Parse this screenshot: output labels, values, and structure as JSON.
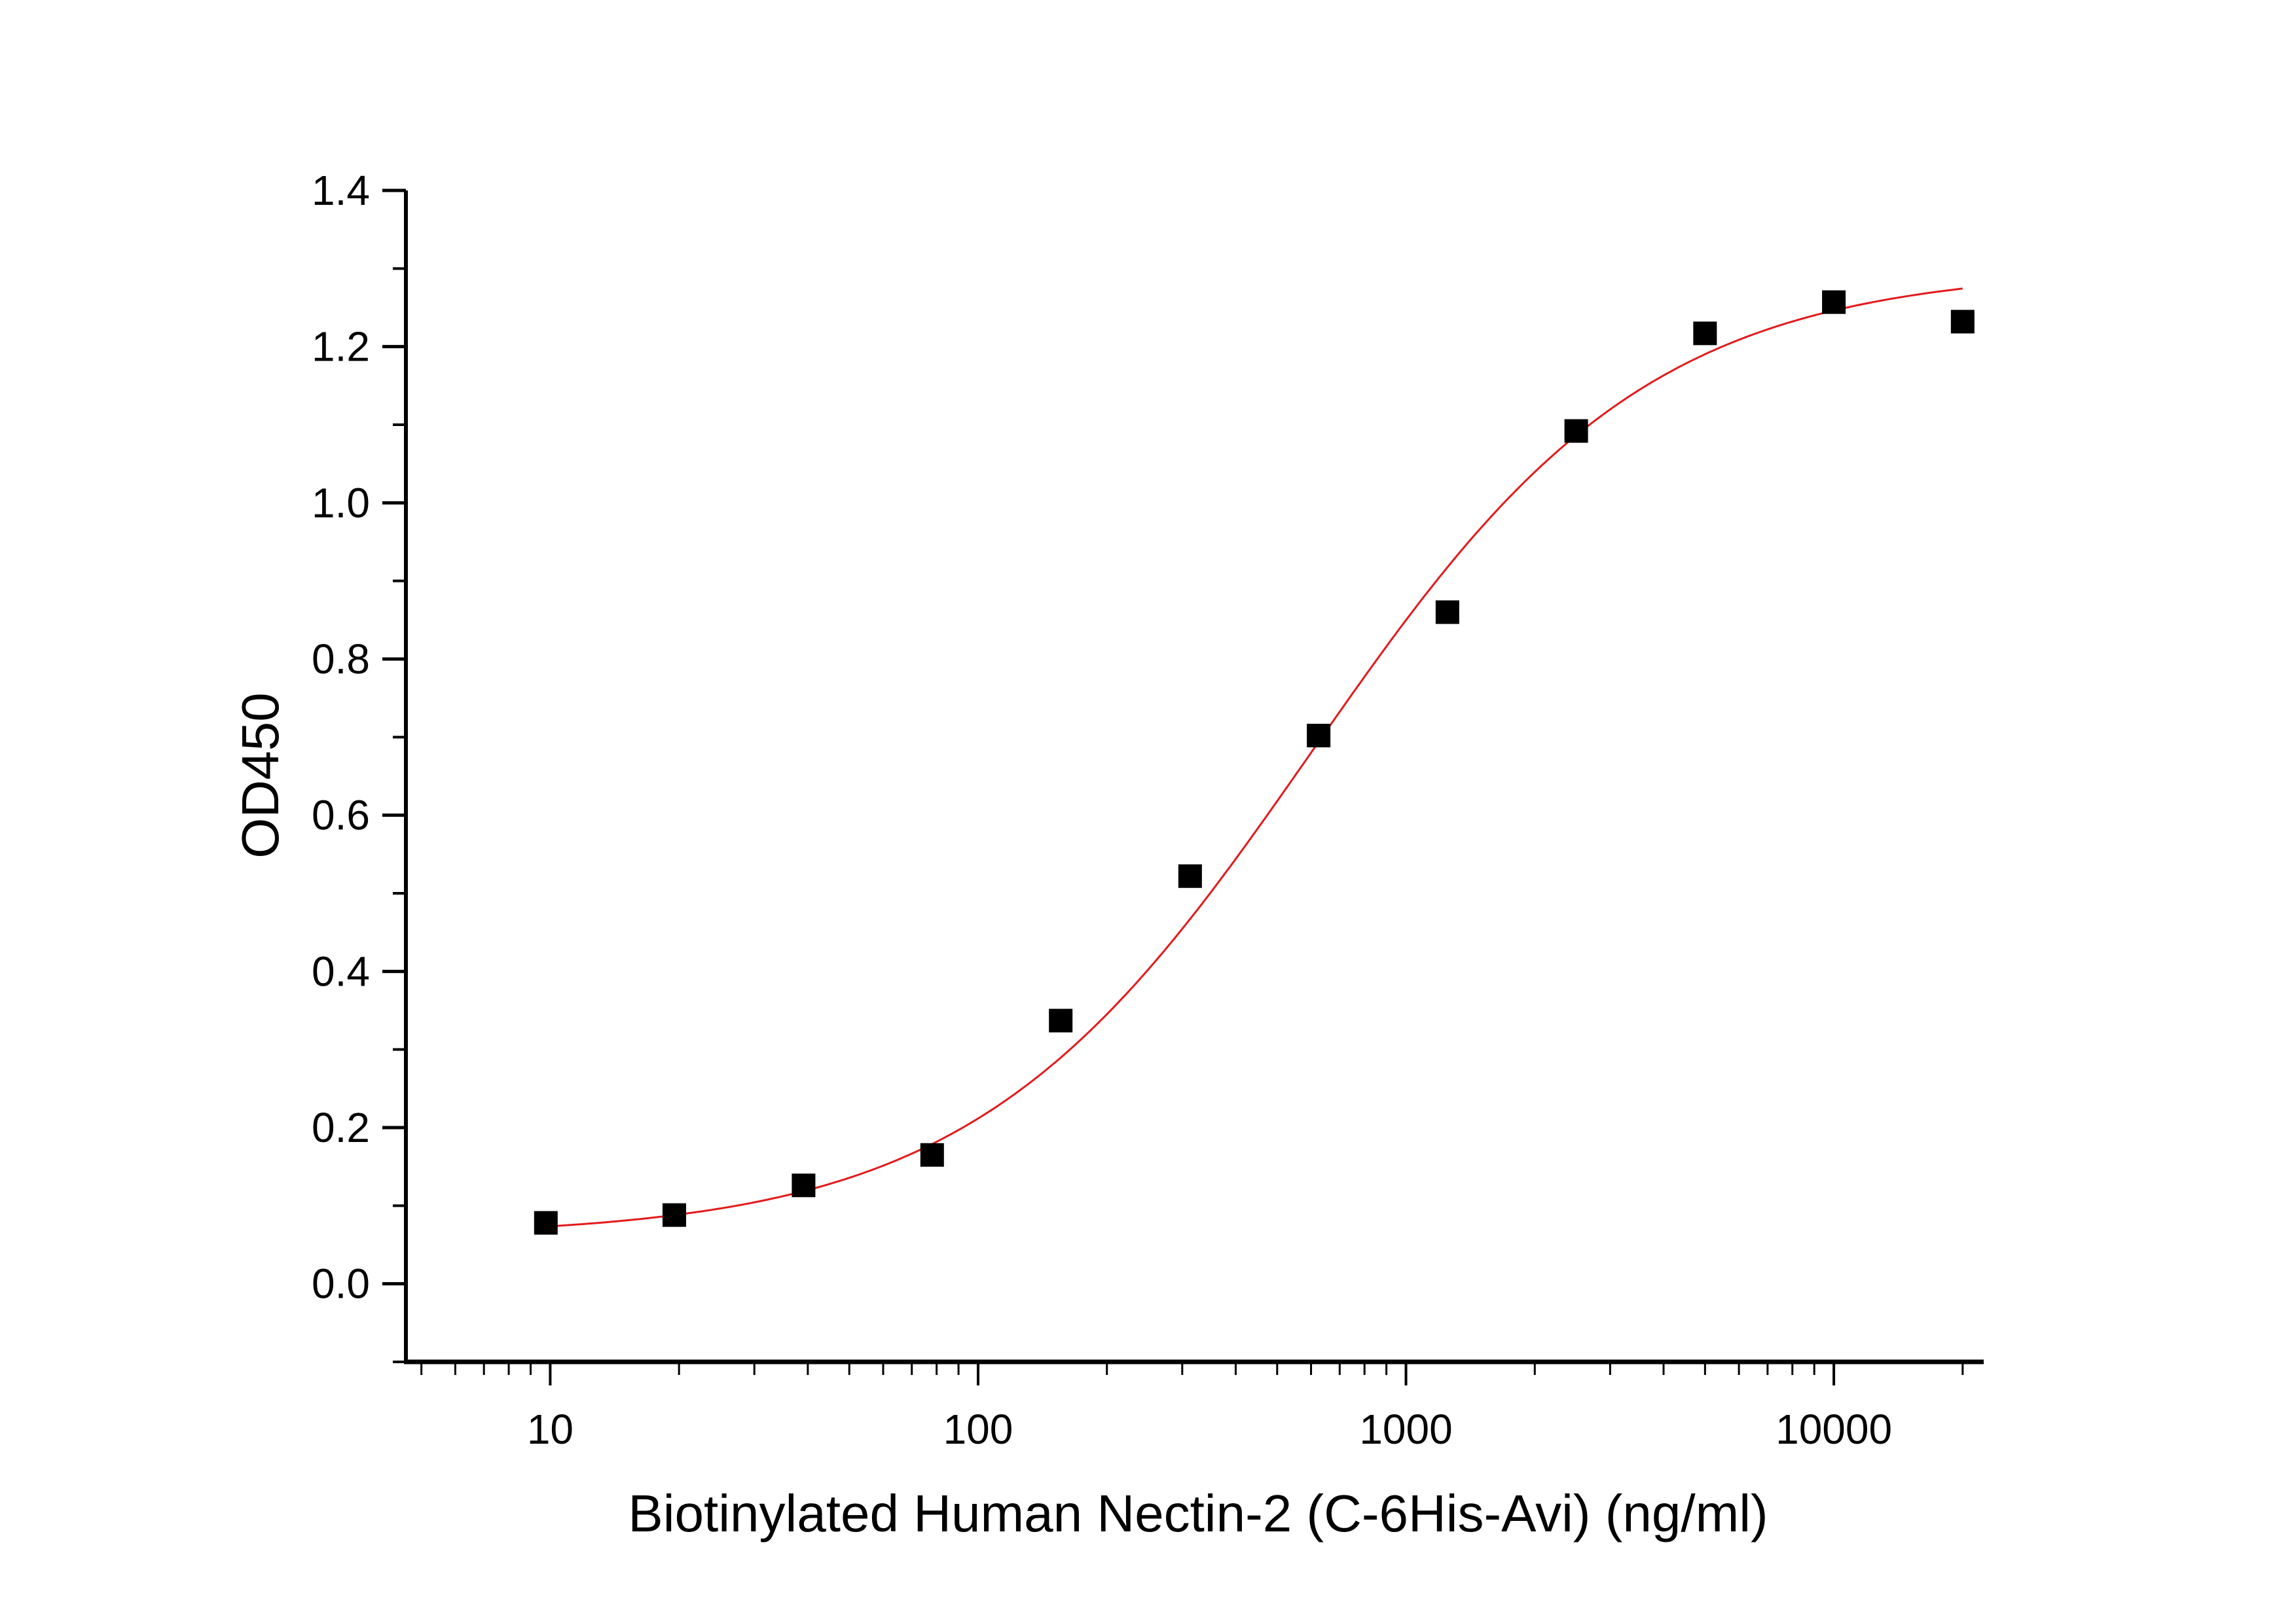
{
  "chart_data": {
    "type": "scatter",
    "title": "",
    "xlabel": "Biotinylated Human Nectin-2 (C-6His-Avi) (ng/ml)",
    "ylabel": "OD450",
    "xscale": "log",
    "xlim": [
      4.6,
      22400
    ],
    "ylim": [
      -0.1,
      1.4
    ],
    "xticks": [
      10,
      100,
      1000,
      10000
    ],
    "xtick_labels": [
      "10",
      "100",
      "1000",
      "10000"
    ],
    "yticks": [
      0.0,
      0.2,
      0.4,
      0.6,
      0.8,
      1.0,
      1.2,
      1.4
    ],
    "ytick_labels": [
      "0.0",
      "0.2",
      "0.4",
      "0.6",
      "0.8",
      "1.0",
      "1.2",
      "1.4"
    ],
    "grid": false,
    "legend": "none",
    "series": [
      {
        "marker": "square",
        "color": "#000000",
        "x": [
          9.77,
          19.5,
          39.1,
          78.1,
          156,
          313,
          625,
          1250,
          2500,
          5000,
          10000,
          20000
        ],
        "y": [
          0.078,
          0.088,
          0.126,
          0.165,
          0.337,
          0.522,
          0.702,
          0.86,
          1.092,
          1.217,
          1.257,
          1.232
        ]
      }
    ],
    "fit_curve": {
      "model": "4PL",
      "color": "#e31a1c",
      "bottom": 0.06,
      "top": 1.3,
      "ec50": 600,
      "hill": 1.1,
      "x_range": [
        9.77,
        20000
      ]
    }
  }
}
